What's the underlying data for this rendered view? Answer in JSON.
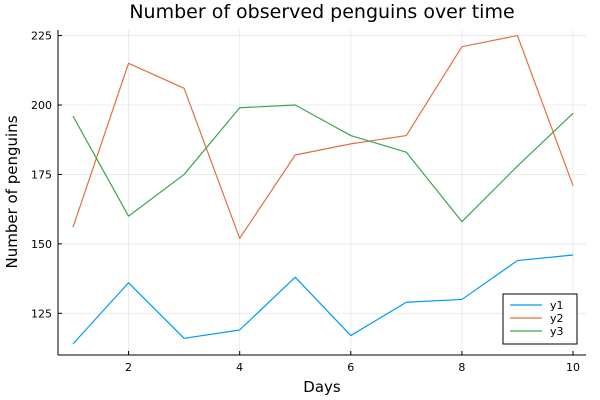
{
  "chart_data": {
    "type": "line",
    "title": "Number of observed penguins over time",
    "xlabel": "Days",
    "ylabel": "Number of penguins",
    "x": [
      1,
      2,
      3,
      4,
      5,
      6,
      7,
      8,
      9,
      10
    ],
    "xlim": [
      1,
      10
    ],
    "ylim": [
      110,
      227
    ],
    "xticks": [
      2,
      4,
      6,
      8,
      10
    ],
    "yticks": [
      125,
      150,
      175,
      200,
      225
    ],
    "grid": true,
    "legend_position": "bottom-right",
    "series": [
      {
        "name": "y1",
        "color": "#009af9",
        "values": [
          114,
          136,
          116,
          119,
          138,
          117,
          129,
          130,
          144,
          146
        ]
      },
      {
        "name": "y2",
        "color": "#e26f46",
        "values": [
          156,
          215,
          206,
          152,
          182,
          186,
          189,
          221,
          225,
          171
        ]
      },
      {
        "name": "y3",
        "color": "#3da44d",
        "values": [
          196,
          160,
          175,
          199,
          200,
          189,
          183,
          158,
          178,
          197
        ]
      }
    ]
  }
}
